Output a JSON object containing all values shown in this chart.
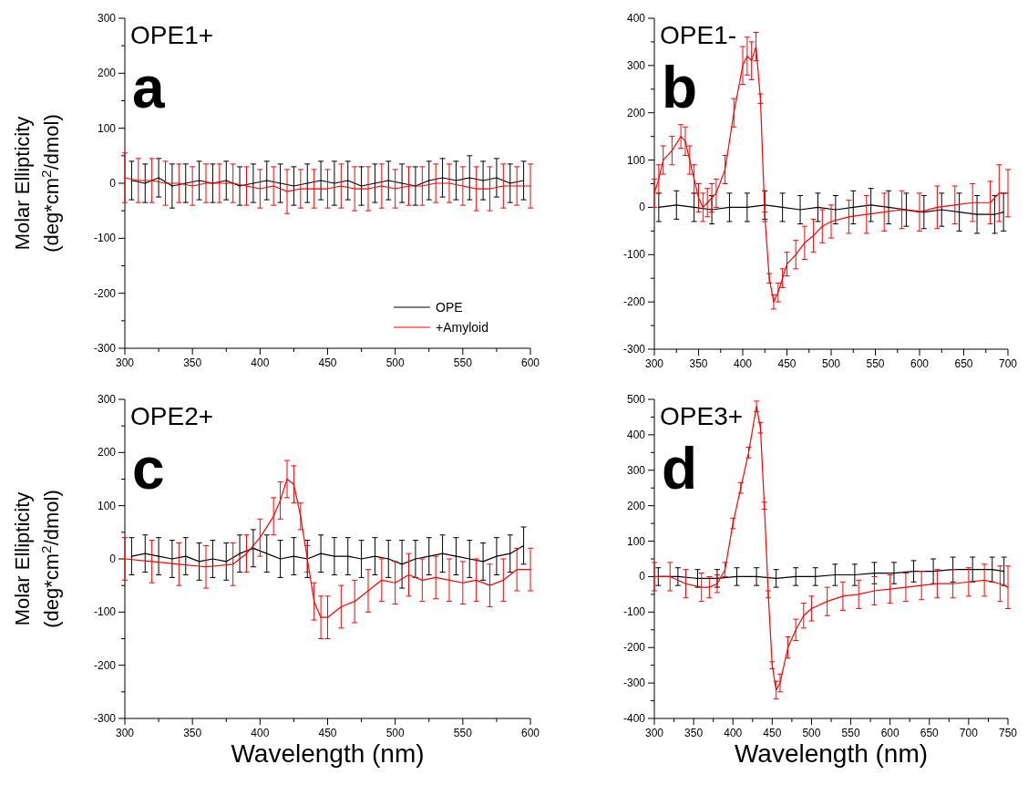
{
  "chart_data": [
    {
      "type": "line",
      "title": "OPE1+",
      "annotations": [
        "a"
      ],
      "ylabel": "Molar Ellipticity\n(deg*cm$^{2}$/dmol)",
      "xlim": [
        300,
        600
      ],
      "ylim": [
        -300,
        300
      ],
      "xticks": [
        300,
        {
          "value": 325,
          "label": null
        },
        350,
        {
          "value": 375,
          "label": null
        },
        400,
        {
          "value": 425,
          "label": null
        },
        450,
        {
          "value": 475,
          "label": null
        },
        500,
        {
          "value": 525,
          "label": null
        },
        550,
        {
          "value": 575,
          "label": null
        },
        600
      ],
      "yticks": [
        -300,
        {
          "value": -250,
          "label": null
        },
        -200,
        {
          "value": -150,
          "label": null
        },
        -100,
        {
          "value": -50,
          "label": null
        },
        0,
        {
          "value": 50,
          "label": null
        },
        100,
        {
          "value": 150,
          "label": null
        },
        200,
        {
          "value": 250,
          "label": null
        },
        300
      ],
      "legend": "bottom right",
      "series": [
        {
          "name": "OPE",
          "color": "#000000",
          "x": [
            305,
            315,
            325,
            335,
            345,
            355,
            365,
            375,
            385,
            395,
            405,
            415,
            425,
            435,
            445,
            455,
            465,
            475,
            485,
            495,
            505,
            515,
            525,
            535,
            545,
            555,
            565,
            575,
            585,
            595
          ],
          "values": [
            5,
            0,
            10,
            -5,
            0,
            5,
            0,
            5,
            -5,
            0,
            5,
            0,
            -5,
            0,
            5,
            0,
            5,
            -5,
            0,
            5,
            0,
            -5,
            5,
            10,
            5,
            10,
            5,
            10,
            0,
            5
          ],
          "errors": [
            35,
            35,
            35,
            40,
            35,
            35,
            35,
            35,
            35,
            35,
            35,
            35,
            35,
            35,
            35,
            40,
            35,
            35,
            35,
            35,
            35,
            35,
            35,
            35,
            35,
            40,
            35,
            35,
            35,
            35
          ]
        },
        {
          "name": "+Amyloid",
          "color": "#ff0000",
          "x": [
            300,
            310,
            320,
            330,
            340,
            350,
            360,
            370,
            380,
            390,
            400,
            410,
            420,
            430,
            440,
            450,
            460,
            470,
            480,
            490,
            500,
            510,
            520,
            530,
            540,
            550,
            560,
            570,
            580,
            590,
            600
          ],
          "values": [
            10,
            5,
            5,
            0,
            0,
            -5,
            0,
            0,
            0,
            -5,
            -10,
            -5,
            -15,
            -10,
            -10,
            -10,
            -5,
            -10,
            -10,
            -5,
            -10,
            -5,
            -5,
            0,
            0,
            -5,
            -10,
            -10,
            -5,
            -5,
            -5
          ],
          "errors": [
            45,
            40,
            40,
            40,
            35,
            35,
            35,
            35,
            35,
            35,
            35,
            35,
            40,
            35,
            35,
            35,
            40,
            40,
            40,
            40,
            35,
            35,
            35,
            35,
            35,
            35,
            40,
            40,
            40,
            35,
            40
          ]
        }
      ]
    },
    {
      "type": "line",
      "title": "OPE1-",
      "annotations": [
        "b"
      ],
      "xlim": [
        300,
        700
      ],
      "ylim": [
        -300,
        400
      ],
      "xticks": [
        300,
        {
          "value": 325,
          "label": null
        },
        350,
        {
          "value": 375,
          "label": null
        },
        400,
        {
          "value": 425,
          "label": null
        },
        450,
        {
          "value": 475,
          "label": null
        },
        500,
        {
          "value": 525,
          "label": null
        },
        550,
        {
          "value": 575,
          "label": null
        },
        600,
        {
          "value": 625,
          "label": null
        },
        650,
        {
          "value": 675,
          "label": null
        },
        700
      ],
      "yticks": [
        -300,
        {
          "value": -250,
          "label": null
        },
        -200,
        {
          "value": -150,
          "label": null
        },
        -100,
        {
          "value": -50,
          "label": null
        },
        0,
        {
          "value": 50,
          "label": null
        },
        100,
        {
          "value": 150,
          "label": null
        },
        200,
        {
          "value": 250,
          "label": null
        },
        300,
        {
          "value": 350,
          "label": null
        },
        400
      ],
      "series": [
        {
          "color": "#000000",
          "x": [
            305,
            325,
            345,
            365,
            385,
            405,
            425,
            445,
            465,
            485,
            505,
            525,
            545,
            565,
            585,
            605,
            625,
            645,
            665,
            685,
            695
          ],
          "values": [
            0,
            5,
            0,
            -5,
            0,
            0,
            5,
            0,
            -5,
            0,
            -5,
            0,
            5,
            0,
            -5,
            -10,
            -5,
            -10,
            -15,
            -15,
            -10
          ],
          "errors": [
            30,
            30,
            30,
            30,
            30,
            30,
            30,
            30,
            30,
            30,
            30,
            35,
            35,
            35,
            35,
            35,
            35,
            40,
            40,
            40,
            40
          ]
        },
        {
          "color": "#ff0000",
          "x": [
            300,
            305,
            310,
            320,
            330,
            335,
            340,
            345,
            350,
            355,
            360,
            365,
            370,
            380,
            390,
            400,
            405,
            410,
            415,
            420,
            425,
            430,
            435,
            440,
            445,
            450,
            460,
            470,
            480,
            490,
            500,
            520,
            540,
            560,
            580,
            600,
            620,
            640,
            660,
            680,
            690,
            700
          ],
          "values": [
            30,
            60,
            100,
            120,
            150,
            140,
            100,
            60,
            20,
            0,
            10,
            20,
            30,
            80,
            200,
            300,
            320,
            310,
            340,
            230,
            -20,
            -150,
            -200,
            -180,
            -150,
            -120,
            -100,
            -75,
            -60,
            -40,
            -30,
            -20,
            -15,
            -10,
            -5,
            -10,
            0,
            5,
            10,
            10,
            30,
            30
          ],
          "errors": [
            30,
            30,
            30,
            30,
            25,
            30,
            30,
            30,
            30,
            30,
            30,
            30,
            30,
            30,
            30,
            40,
            40,
            40,
            30,
            10,
            10,
            10,
            15,
            20,
            20,
            25,
            30,
            35,
            35,
            35,
            35,
            35,
            40,
            40,
            40,
            40,
            45,
            40,
            40,
            45,
            60,
            50
          ]
        }
      ]
    },
    {
      "type": "line",
      "title": "OPE2+",
      "annotations": [
        "c"
      ],
      "xlabel": "Wavelength (nm)",
      "ylabel": "Molar Ellipticity\n(deg*cm$^{2}$/dmol)",
      "xlim": [
        300,
        600
      ],
      "ylim": [
        -300,
        300
      ],
      "xticks": [
        300,
        {
          "value": 325,
          "label": null
        },
        350,
        {
          "value": 375,
          "label": null
        },
        400,
        {
          "value": 425,
          "label": null
        },
        450,
        {
          "value": 475,
          "label": null
        },
        500,
        {
          "value": 525,
          "label": null
        },
        550,
        {
          "value": 575,
          "label": null
        },
        600
      ],
      "yticks": [
        -300,
        {
          "value": -250,
          "label": null
        },
        -200,
        {
          "value": -150,
          "label": null
        },
        -100,
        {
          "value": -50,
          "label": null
        },
        0,
        {
          "value": 50,
          "label": null
        },
        100,
        {
          "value": 150,
          "label": null
        },
        200,
        {
          "value": 250,
          "label": null
        },
        300
      ],
      "series": [
        {
          "color": "#000000",
          "x": [
            305,
            315,
            325,
            335,
            345,
            355,
            365,
            375,
            385,
            395,
            405,
            415,
            425,
            435,
            445,
            455,
            465,
            475,
            485,
            495,
            505,
            515,
            525,
            535,
            545,
            555,
            565,
            575,
            585,
            595
          ],
          "values": [
            5,
            10,
            5,
            0,
            5,
            -5,
            0,
            -5,
            10,
            20,
            10,
            0,
            5,
            0,
            10,
            5,
            5,
            0,
            5,
            0,
            -10,
            0,
            5,
            10,
            5,
            0,
            -5,
            5,
            10,
            25
          ],
          "errors": [
            35,
            35,
            35,
            35,
            35,
            35,
            35,
            35,
            35,
            35,
            35,
            35,
            35,
            35,
            35,
            35,
            35,
            35,
            35,
            35,
            45,
            35,
            35,
            35,
            35,
            35,
            35,
            35,
            35,
            35
          ]
        },
        {
          "color": "#ff0000",
          "x": [
            300,
            320,
            340,
            360,
            380,
            390,
            400,
            410,
            415,
            420,
            425,
            430,
            435,
            440,
            445,
            450,
            460,
            470,
            480,
            490,
            500,
            510,
            520,
            530,
            540,
            550,
            560,
            570,
            580,
            590,
            600
          ],
          "values": [
            0,
            -5,
            -10,
            -15,
            -10,
            10,
            40,
            80,
            110,
            150,
            140,
            80,
            0,
            -80,
            -110,
            -110,
            -90,
            -80,
            -60,
            -40,
            -45,
            -30,
            -40,
            -35,
            -40,
            -45,
            -40,
            -50,
            -40,
            -20,
            -20
          ],
          "errors": [
            40,
            40,
            40,
            40,
            40,
            35,
            35,
            35,
            35,
            35,
            35,
            25,
            25,
            35,
            40,
            40,
            40,
            40,
            40,
            40,
            40,
            40,
            40,
            40,
            40,
            40,
            40,
            40,
            40,
            40,
            40
          ]
        }
      ]
    },
    {
      "type": "line",
      "title": "OPE3+",
      "annotations": [
        "d"
      ],
      "xlabel": "Wavelength (nm)",
      "xlim": [
        300,
        750
      ],
      "ylim": [
        -400,
        500
      ],
      "xticks": [
        300,
        {
          "value": 325,
          "label": null
        },
        350,
        {
          "value": 375,
          "label": null
        },
        400,
        {
          "value": 425,
          "label": null
        },
        450,
        {
          "value": 475,
          "label": null
        },
        500,
        {
          "value": 525,
          "label": null
        },
        550,
        {
          "value": 575,
          "label": null
        },
        600,
        {
          "value": 625,
          "label": null
        },
        650,
        {
          "value": 675,
          "label": null
        },
        700,
        {
          "value": 725,
          "label": null
        },
        750
      ],
      "yticks": [
        -400,
        {
          "value": -350,
          "label": null
        },
        -300,
        {
          "value": -250,
          "label": null
        },
        -200,
        {
          "value": -150,
          "label": null
        },
        -100,
        {
          "value": -50,
          "label": null
        },
        0,
        {
          "value": 50,
          "label": null
        },
        100,
        {
          "value": 150,
          "label": null
        },
        200,
        {
          "value": 250,
          "label": null
        },
        300,
        {
          "value": 350,
          "label": null
        },
        400,
        {
          "value": 450,
          "label": null
        },
        500
      ],
      "series": [
        {
          "color": "#000000",
          "x": [
            305,
            330,
            355,
            380,
            405,
            430,
            455,
            480,
            505,
            530,
            555,
            580,
            605,
            630,
            655,
            680,
            705,
            730,
            745
          ],
          "values": [
            0,
            0,
            -5,
            -5,
            0,
            0,
            -5,
            0,
            0,
            5,
            5,
            10,
            10,
            15,
            15,
            20,
            20,
            20,
            15
          ],
          "errors": [
            25,
            25,
            25,
            25,
            25,
            25,
            25,
            25,
            25,
            30,
            30,
            30,
            30,
            30,
            35,
            35,
            35,
            35,
            40
          ]
        },
        {
          "color": "#ff0000",
          "x": [
            300,
            320,
            340,
            360,
            370,
            380,
            390,
            400,
            410,
            420,
            430,
            435,
            440,
            445,
            450,
            455,
            460,
            470,
            480,
            490,
            500,
            520,
            540,
            560,
            580,
            600,
            620,
            640,
            660,
            680,
            700,
            720,
            740,
            750
          ],
          "values": [
            0,
            0,
            -20,
            -30,
            -30,
            -20,
            20,
            150,
            250,
            350,
            480,
            420,
            200,
            -50,
            -250,
            -320,
            -300,
            -200,
            -150,
            -110,
            -90,
            -70,
            -55,
            -50,
            -40,
            -35,
            -30,
            -25,
            -20,
            -20,
            -15,
            -10,
            -20,
            -30
          ],
          "errors": [
            40,
            40,
            40,
            40,
            30,
            25,
            20,
            15,
            15,
            15,
            15,
            15,
            10,
            10,
            10,
            25,
            25,
            30,
            30,
            35,
            35,
            40,
            40,
            40,
            40,
            40,
            40,
            40,
            40,
            40,
            40,
            45,
            50,
            60
          ]
        }
      ]
    }
  ]
}
